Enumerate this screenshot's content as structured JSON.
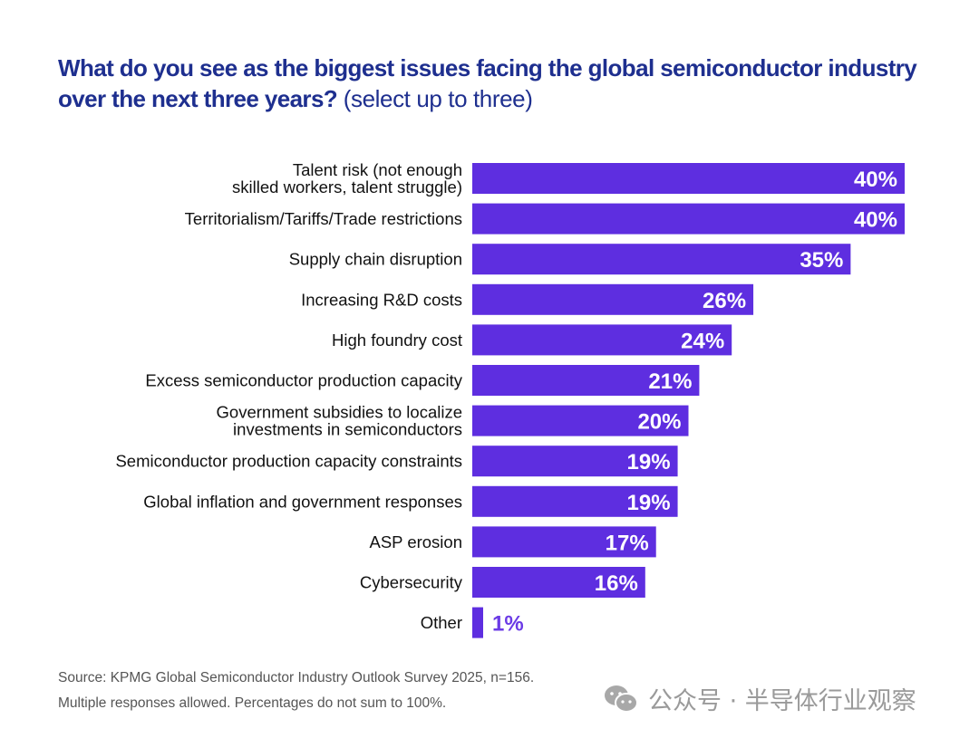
{
  "chart_data": {
    "type": "bar",
    "orientation": "horizontal",
    "title": "What do you see as the biggest issues facing the global semiconductor industry over the next three years?",
    "subtitle": "(select up to three)",
    "xlabel": "",
    "ylabel": "",
    "xlim": [
      0,
      40
    ],
    "grid": false,
    "unit": "%",
    "categories": [
      [
        "Talent risk (not enough",
        "skilled workers, talent struggle)"
      ],
      [
        "Territorialism/Tariffs/Trade restrictions"
      ],
      [
        "Supply chain disruption"
      ],
      [
        "Increasing R&D costs"
      ],
      [
        "High foundry cost"
      ],
      [
        "Excess semiconductor production capacity"
      ],
      [
        "Government subsidies to localize",
        "investments in semiconductors"
      ],
      [
        "Semiconductor production capacity constraints"
      ],
      [
        "Global inflation and government responses"
      ],
      [
        "ASP erosion"
      ],
      [
        "Cybersecurity"
      ],
      [
        "Other"
      ]
    ],
    "values": [
      40,
      40,
      35,
      26,
      24,
      21,
      20,
      19,
      19,
      17,
      16,
      1
    ],
    "data_labels": [
      "40%",
      "40%",
      "35%",
      "26%",
      "24%",
      "21%",
      "20%",
      "19%",
      "19%",
      "17%",
      "16%",
      "1%"
    ],
    "bar_color": "#5e2ee0",
    "title_color": "#1e2f8f"
  },
  "title": {
    "main": "What do you see as the biggest issues facing the global semiconductor industry over the next three years?",
    "sub": "(select up to three)"
  },
  "footer": {
    "source": "Source:  KPMG Global Semiconductor Industry Outlook Survey 2025, n=156.",
    "note": "Multiple responses allowed. Percentages do not sum to 100%."
  },
  "watermark": {
    "text": "公众号 · 半导体行业观察",
    "icon": "wechat-icon"
  }
}
